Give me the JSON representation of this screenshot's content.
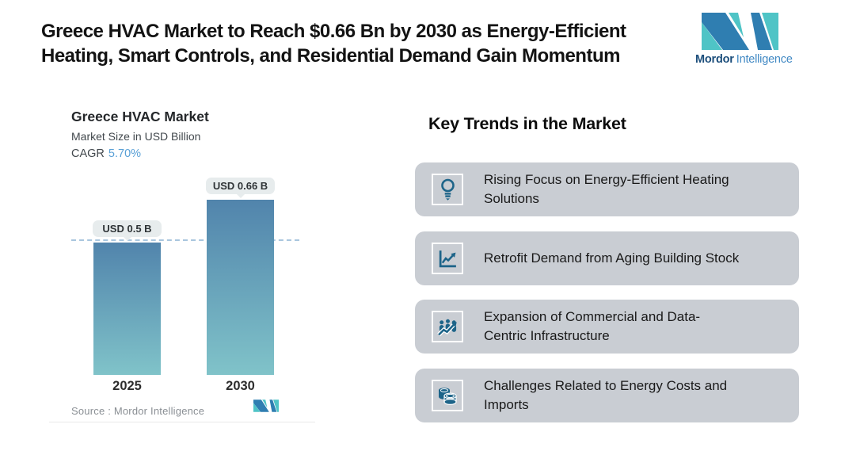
{
  "header": {
    "title": "Greece HVAC Market to Reach $0.66 Bn by 2030 as Energy-Efficient\nHeating, Smart Controls, and Residential Demand Gain Momentum",
    "brand": {
      "bold": "Mordor",
      "light": "Intelligence"
    }
  },
  "chart_data": {
    "type": "bar",
    "title": "Greece HVAC Market",
    "subtitle": "Market Size in USD Billion",
    "cagr_label": "CAGR",
    "cagr_value": "5.70%",
    "categories": [
      "2025",
      "2030"
    ],
    "values": [
      0.5,
      0.66
    ],
    "value_labels": [
      "USD 0.5 B",
      "USD 0.66 B"
    ],
    "unit": "USD Billion",
    "ylim": [
      0,
      0.66
    ],
    "grid": false,
    "reference_line_value": 0.5,
    "legend": "none",
    "source": "Source :  Mordor Intelligence"
  },
  "trends": {
    "heading": "Key Trends in the Market",
    "items": [
      {
        "icon": "lightbulb-icon",
        "text": "Rising Focus on Energy-Efficient Heating\nSolutions"
      },
      {
        "icon": "line-chart-icon",
        "text": "Retrofit Demand from Aging Building Stock"
      },
      {
        "icon": "people-growth-icon",
        "text": "Expansion of Commercial and Data-\nCentric Infrastructure"
      },
      {
        "icon": "coins-icon",
        "text": "Challenges Related to Energy Costs and\nImports"
      }
    ]
  },
  "colors": {
    "brand_teal": "#4fc4c6",
    "brand_blue": "#2f7eb1",
    "brand_name_navy": "#1c4e7b",
    "brand_name_light_blue": "#4189c4",
    "cagr_value_blue": "#59a0d6",
    "bar_gradient_top": "#5184ac",
    "bar_gradient_bottom": "#80c3c9",
    "dashed_reference_line": "#a9c6de",
    "value_pill_bg": "#e7eced",
    "trend_card_bg": "#c9cdd3",
    "trend_icon_blue": "#1d6489"
  }
}
